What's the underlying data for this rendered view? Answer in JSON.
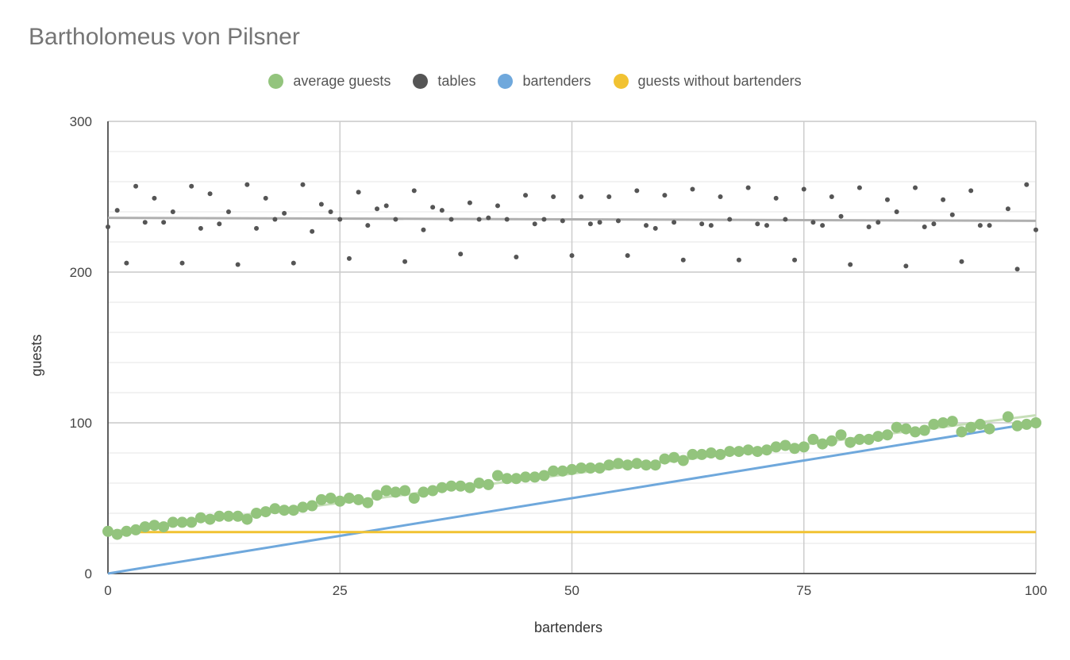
{
  "chart_data": {
    "type": "scatter",
    "title": "Bartholomeus von Pilsner",
    "xlabel": "bartenders",
    "ylabel": "guests",
    "xlim": [
      0,
      100
    ],
    "ylim": [
      0,
      300
    ],
    "x_ticks": [
      "0",
      "25",
      "50",
      "75",
      "100"
    ],
    "y_ticks": [
      "0",
      "100",
      "200",
      "300"
    ],
    "grid": true,
    "legend_position": "top",
    "series": [
      {
        "name": "average guests",
        "color": "#93c47d",
        "marker": "large-dot",
        "x": [
          0,
          1,
          2,
          3,
          4,
          5,
          6,
          7,
          8,
          9,
          10,
          11,
          12,
          13,
          14,
          15,
          16,
          17,
          18,
          19,
          20,
          21,
          22,
          23,
          24,
          25,
          26,
          27,
          28,
          29,
          30,
          31,
          32,
          33,
          34,
          35,
          36,
          37,
          38,
          39,
          40,
          41,
          42,
          43,
          44,
          45,
          46,
          47,
          48,
          49,
          50,
          51,
          52,
          53,
          54,
          55,
          56,
          57,
          58,
          59,
          60,
          61,
          62,
          63,
          64,
          65,
          66,
          67,
          68,
          69,
          70,
          71,
          72,
          73,
          74,
          75,
          76,
          77,
          78,
          79,
          80,
          81,
          82,
          83,
          84,
          85,
          86,
          87,
          88,
          89,
          90,
          91,
          92,
          93,
          94,
          95,
          96,
          97,
          98,
          99,
          100
        ],
        "y": [
          28,
          26,
          28,
          29,
          31,
          32,
          31,
          34,
          34,
          34,
          37,
          36,
          38,
          38,
          38,
          36,
          40,
          41,
          43,
          42,
          42,
          44,
          45,
          49,
          50,
          48,
          50,
          49,
          47,
          52,
          55,
          54,
          55,
          50,
          54,
          55,
          57,
          58,
          58,
          57,
          60,
          59,
          65,
          63,
          63,
          64,
          64,
          65,
          68,
          68,
          69,
          70,
          70,
          70,
          72,
          73,
          72,
          73,
          72,
          72,
          76,
          77,
          75,
          79,
          79,
          80,
          79,
          81,
          81,
          82,
          81,
          82,
          84,
          85,
          83,
          84,
          89,
          86,
          88,
          92,
          87,
          89,
          89,
          91,
          92,
          97,
          96,
          94,
          95,
          99,
          100,
          101,
          94,
          97,
          99,
          96,
          null,
          104,
          98,
          99,
          100
        ],
        "trendline": {
          "from": [
            0,
            27.5
          ],
          "to": [
            100,
            105
          ]
        }
      },
      {
        "name": "tables",
        "color": "#555555",
        "marker": "small-dot",
        "x": [
          0,
          1,
          2,
          3,
          4,
          5,
          6,
          7,
          8,
          9,
          10,
          11,
          12,
          13,
          14,
          15,
          16,
          17,
          18,
          19,
          20,
          21,
          22,
          23,
          24,
          25,
          26,
          27,
          28,
          29,
          30,
          31,
          32,
          33,
          34,
          35,
          36,
          37,
          38,
          39,
          40,
          41,
          42,
          43,
          44,
          45,
          46,
          47,
          48,
          49,
          50,
          51,
          52,
          53,
          54,
          55,
          56,
          57,
          58,
          59,
          60,
          61,
          62,
          63,
          64,
          65,
          66,
          67,
          68,
          69,
          70,
          71,
          72,
          73,
          74,
          75,
          76,
          77,
          78,
          79,
          80,
          81,
          82,
          83,
          84,
          85,
          86,
          87,
          88,
          89,
          90,
          91,
          92,
          93,
          94,
          95,
          96,
          97,
          98,
          99,
          100
        ],
        "y": [
          230,
          241,
          206,
          257,
          233,
          249,
          233,
          240,
          206,
          257,
          229,
          252,
          232,
          240,
          205,
          258,
          229,
          249,
          235,
          239,
          206,
          258,
          227,
          245,
          240,
          235,
          209,
          253,
          231,
          242,
          244,
          235,
          207,
          254,
          228,
          243,
          241,
          235,
          212,
          246,
          235,
          236,
          244,
          235,
          210,
          251,
          232,
          235,
          250,
          234,
          211,
          250,
          232,
          233,
          250,
          234,
          211,
          254,
          231,
          229,
          251,
          233,
          208,
          255,
          232,
          231,
          250,
          235,
          208,
          256,
          232,
          231,
          249,
          235,
          208,
          255,
          233,
          231,
          250,
          237,
          205,
          256,
          230,
          233,
          248,
          240,
          204,
          256,
          230,
          232,
          248,
          238,
          207,
          254,
          231,
          231,
          null,
          242,
          202,
          258,
          228
        ],
        "trendline": {
          "from": [
            0,
            236
          ],
          "to": [
            100,
            234
          ]
        }
      },
      {
        "name": "bartenders",
        "color": "#6fa8dc",
        "marker": "line",
        "x": [
          0,
          100
        ],
        "y": [
          0,
          100
        ]
      },
      {
        "name": "guests without bartenders",
        "color": "#f1c232",
        "marker": "line",
        "x": [
          0,
          100
        ],
        "y": [
          27.5,
          27.5
        ]
      }
    ]
  }
}
